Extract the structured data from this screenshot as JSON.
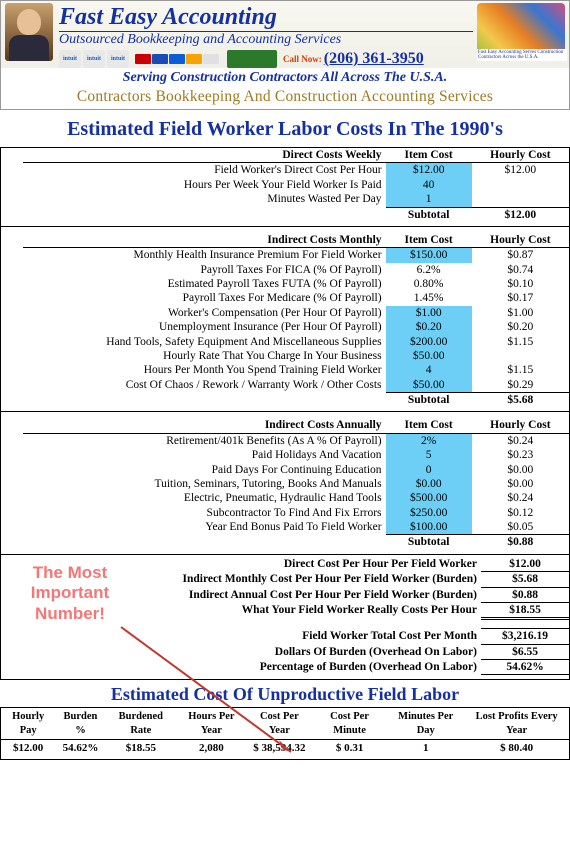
{
  "header": {
    "brand": "Fast Easy Accounting",
    "tagline": "Outsourced Bookkeeping and Accounting Services",
    "call_now": "Call Now:",
    "phone": "(206) 361-3950",
    "serving": "Serving Construction Contractors All Across The U.S.A.",
    "subtitle": "Contractors Bookkeeping And Construction Accounting Services",
    "map_caption": "Fast Easy Accounting Serves Construction Contractors Across the U.S.A."
  },
  "main_title": "Estimated Field Worker Labor Costs In The 1990's",
  "cols": {
    "item": "Item Cost",
    "hour": "Hourly Cost",
    "subtotal": "Subtotal"
  },
  "sections": {
    "direct": {
      "title": "Direct Costs Weekly",
      "rows": [
        {
          "label": "Field Worker's Direct Cost Per Hour",
          "item": "$12.00",
          "hour": "$12.00",
          "hi": true
        },
        {
          "label": "Hours Per Week Your Field Worker Is Paid",
          "item": "40",
          "hour": "",
          "hi": true
        },
        {
          "label": "Minutes Wasted Per Day",
          "item": "1",
          "hour": "",
          "hi": true
        }
      ],
      "subtotal_hour": "$12.00"
    },
    "monthly": {
      "title": "Indirect Costs Monthly",
      "rows": [
        {
          "label": "Monthly Health Insurance Premium For Field Worker",
          "item": "$150.00",
          "hour": "$0.87",
          "hi": true
        },
        {
          "label": "Payroll Taxes For FICA (% Of Payroll)",
          "item": "6.2%",
          "hour": "$0.74",
          "hi": false
        },
        {
          "label": "Estimated Payroll Taxes FUTA (% Of Payroll)",
          "item": "0.80%",
          "hour": "$0.10",
          "hi": false
        },
        {
          "label": "Payroll Taxes For Medicare (% Of Payroll)",
          "item": "1.45%",
          "hour": "$0.17",
          "hi": false
        },
        {
          "label": "Worker's Compensation (Per Hour Of Payroll)",
          "item": "$1.00",
          "hour": "$1.00",
          "hi": true
        },
        {
          "label": "Unemployment Insurance (Per Hour Of Payroll)",
          "item": "$0.20",
          "hour": "$0.20",
          "hi": true
        },
        {
          "label": "Hand Tools, Safety Equipment And Miscellaneous Supplies",
          "item": "$200.00",
          "hour": "$1.15",
          "hi": true
        },
        {
          "label": "Hourly Rate That You Charge In Your Business",
          "item": "$50.00",
          "hour": "",
          "hi": true
        },
        {
          "label": "Hours Per Month You Spend Training Field Worker",
          "item": "4",
          "hour": "$1.15",
          "hi": true
        },
        {
          "label": "Cost Of Chaos / Rework / Warranty Work / Other Costs",
          "item": "$50.00",
          "hour": "$0.29",
          "hi": true
        }
      ],
      "subtotal_hour": "$5.68"
    },
    "annual": {
      "title": "Indirect Costs Annually",
      "rows": [
        {
          "label": "Retirement/401k Benefits (As A % Of Payroll)",
          "item": "2%",
          "hour": "$0.24",
          "hi": true
        },
        {
          "label": "Paid Holidays And Vacation",
          "item": "5",
          "hour": "$0.23",
          "hi": true
        },
        {
          "label": "Paid Days For Continuing Education",
          "item": "0",
          "hour": "$0.00",
          "hi": true
        },
        {
          "label": "Tuition, Seminars, Tutoring, Books And Manuals",
          "item": "$0.00",
          "hour": "$0.00",
          "hi": true
        },
        {
          "label": "Electric, Pneumatic, Hydraulic Hand Tools",
          "item": "$500.00",
          "hour": "$0.24",
          "hi": true
        },
        {
          "label": "Subcontractor To Find And Fix Errors",
          "item": "$250.00",
          "hour": "$0.12",
          "hi": true
        },
        {
          "label": "Year End Bonus Paid To Field Worker",
          "item": "$100.00",
          "hour": "$0.05",
          "hi": true
        }
      ],
      "subtotal_hour": "$0.88"
    }
  },
  "summary": {
    "callout": "The Most Important Number!",
    "rows": [
      {
        "label": "Direct Cost Per Hour Per Field Worker",
        "val": "$12.00",
        "style": ""
      },
      {
        "label": "Indirect Monthly Cost Per Hour Per Field Worker (Burden)",
        "val": "$5.68",
        "style": ""
      },
      {
        "label": "Indirect Annual Cost Per Hour Per Field Worker (Burden)",
        "val": "$0.88",
        "style": ""
      },
      {
        "label": "What Your Field Worker Really Costs Per Hour",
        "val": "$18.55",
        "style": "dbl"
      },
      {
        "label": "",
        "val": "",
        "style": "blank"
      },
      {
        "label": "Field Worker Total Cost Per Month",
        "val": "$3,216.19",
        "style": "top"
      },
      {
        "label": "Dollars Of Burden (Overhead On Labor)",
        "val": "$6.55",
        "style": ""
      },
      {
        "label": "Percentage of Burden (Overhead On Labor)",
        "val": "54.62%",
        "style": ""
      }
    ]
  },
  "unprod": {
    "title": "Estimated Cost Of Unproductive Field Labor",
    "headers": [
      "Hourly Pay",
      "Burden %",
      "Burdened Rate",
      "Hours Per Year",
      "Cost Per Year",
      "Cost Per Minute",
      "Minutes Per Day",
      "Lost Profits Every Year"
    ],
    "row": [
      "$12.00",
      "54.62%",
      "$18.55",
      "2,080",
      "$   38,594.32",
      "$     0.31",
      "1",
      "$        80.40"
    ]
  },
  "colors": {
    "highlight": "#6dcff6",
    "brand_blue": "#1530a0",
    "gold": "#9f7a20",
    "callout": "#f27878",
    "arrow": "#c0392b"
  }
}
